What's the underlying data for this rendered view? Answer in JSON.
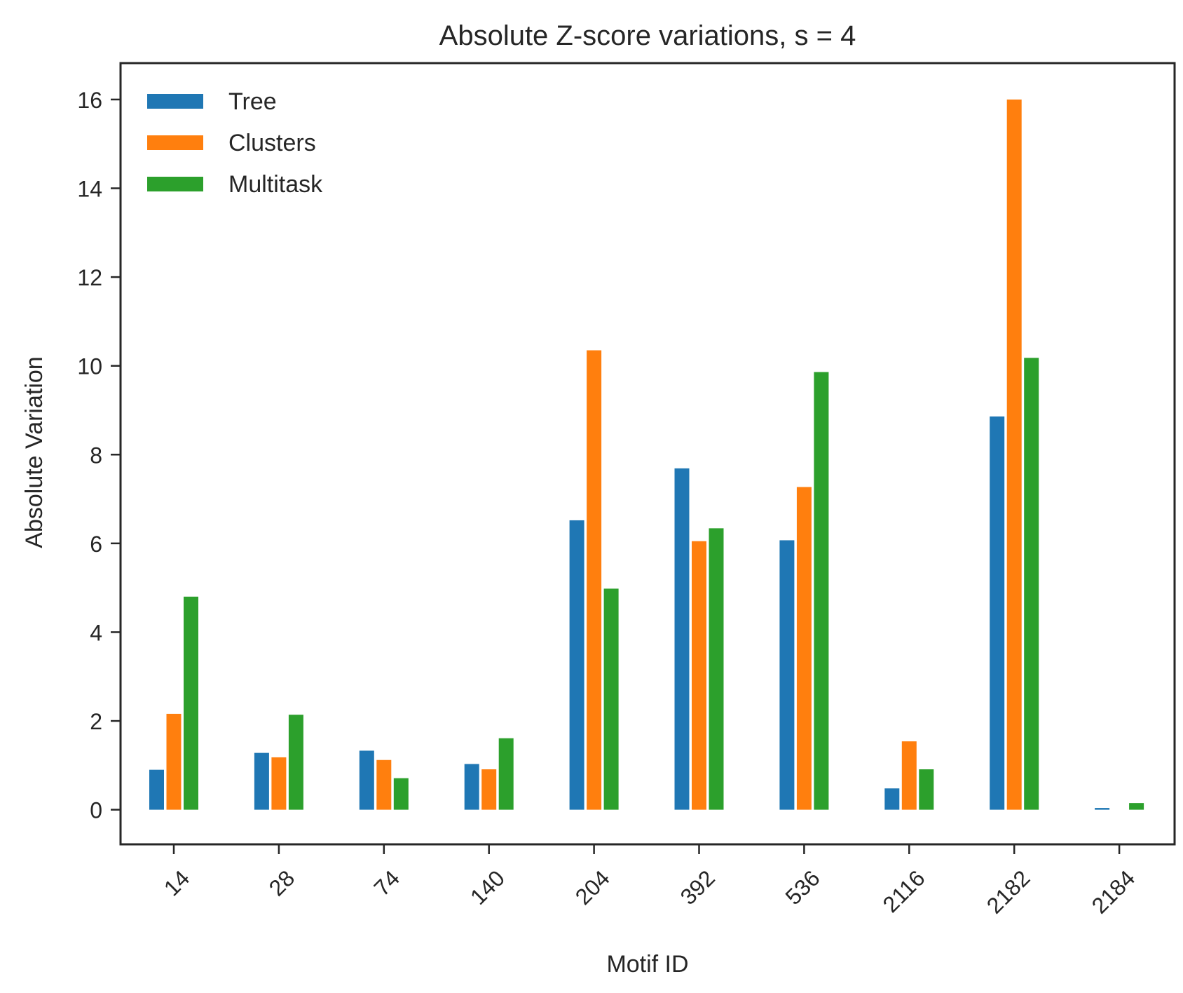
{
  "chart_data": {
    "type": "bar",
    "title": "Absolute Z-score variations, s = 4",
    "xlabel": "Motif ID",
    "ylabel": "Absolute Variation",
    "categories": [
      "14",
      "28",
      "74",
      "140",
      "204",
      "392",
      "536",
      "2116",
      "2182",
      "2184"
    ],
    "series": [
      {
        "name": "Tree",
        "color": "#1f77b4",
        "values": [
          0.9,
          1.28,
          1.33,
          1.03,
          6.52,
          7.69,
          6.07,
          0.48,
          8.86,
          0.04
        ]
      },
      {
        "name": "Clusters",
        "color": "#ff7f0e",
        "values": [
          2.16,
          1.18,
          1.12,
          0.91,
          10.35,
          6.05,
          7.27,
          1.54,
          16.0,
          0.0
        ]
      },
      {
        "name": "Multitask",
        "color": "#2ca02c",
        "values": [
          4.8,
          2.14,
          0.71,
          1.61,
          4.98,
          6.34,
          9.86,
          0.91,
          10.18,
          0.15
        ]
      }
    ],
    "ylim": [
      -0.78,
      16.82
    ],
    "yticks": [
      0,
      2,
      4,
      6,
      8,
      10,
      12,
      14,
      16
    ],
    "grid": false,
    "legend_position": "top-left",
    "xtick_rotation": 45
  }
}
